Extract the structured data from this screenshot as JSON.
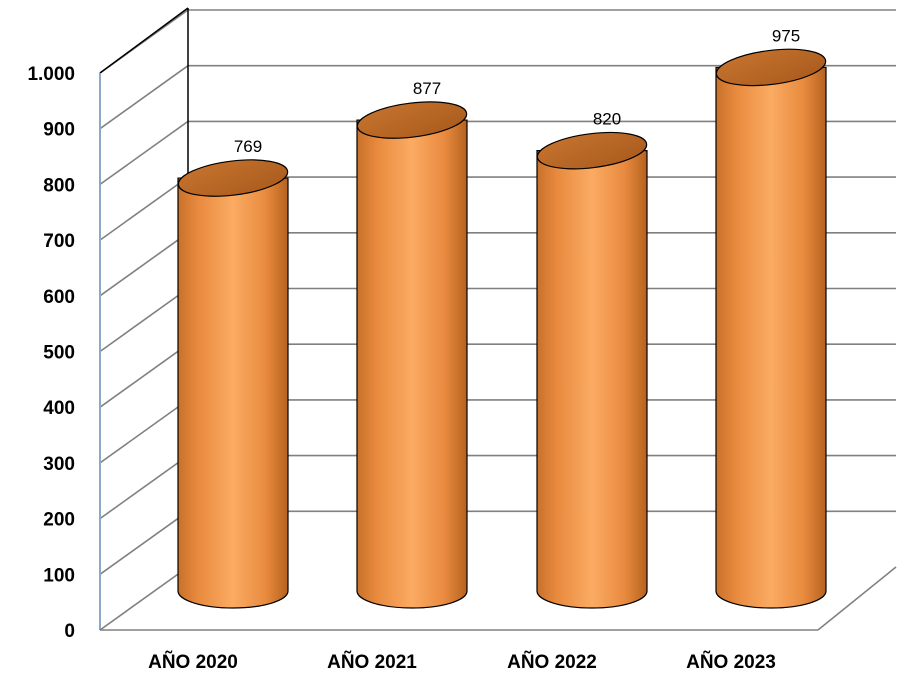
{
  "chart_data": {
    "type": "bar",
    "style": "3d-cylinder",
    "categories": [
      "AÑO 2020",
      "AÑO 2021",
      "AÑO 2022",
      "AÑO 2023"
    ],
    "values": [
      769,
      877,
      820,
      975
    ],
    "data_labels": [
      "769",
      "877",
      "820",
      "975"
    ],
    "y_ticks": [
      0,
      100,
      200,
      300,
      400,
      500,
      600,
      700,
      800,
      900,
      1000
    ],
    "y_tick_labels": [
      "0",
      "100",
      "200",
      "300",
      "400",
      "500",
      "600",
      "700",
      "800",
      "900",
      "1.000"
    ],
    "ylim": [
      0,
      1000
    ],
    "grid": true,
    "legend": "none",
    "bar_color": "#f79646",
    "bar_shadow_color": "#b3641f",
    "gridline_color": "#808080"
  }
}
